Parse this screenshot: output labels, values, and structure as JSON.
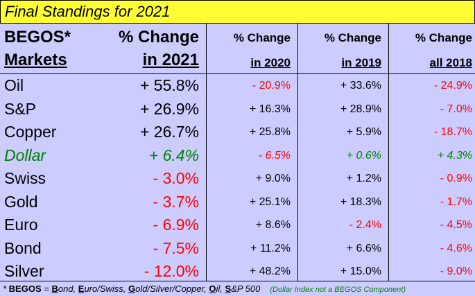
{
  "title": "Final Standings for 2021",
  "headers": {
    "col0_line1": "BEGOS*",
    "col0_line2": "Markets",
    "col1_line1": "% Change",
    "col1_line2": "in 2021",
    "col2_line1": "% Change",
    "col2_line2": "in 2020",
    "col3_line1": "% Change",
    "col3_line2": "in 2019",
    "col4_line1": "% Change",
    "col4_line2": "all 2018"
  },
  "rows": [
    {
      "market": "Oil",
      "y2021": "+ 55.8%",
      "y2020": "- 20.9%",
      "y2019": "+ 33.6%",
      "y2018": "- 24.9%"
    },
    {
      "market": "S&P",
      "y2021": "+ 26.9%",
      "y2020": "+ 16.3%",
      "y2019": "+ 28.9%",
      "y2018": "- 7.0%"
    },
    {
      "market": "Copper",
      "y2021": "+ 26.7%",
      "y2020": "+ 25.8%",
      "y2019": "+ 5.9%",
      "y2018": "- 18.7%"
    },
    {
      "market": "Dollar",
      "y2021": "+ 6.4%",
      "y2020": "- 6.5%",
      "y2019": "+ 0.6%",
      "y2018": "+ 4.3%"
    },
    {
      "market": "Swiss",
      "y2021": "- 3.0%",
      "y2020": "+ 9.0%",
      "y2019": "+ 1.2%",
      "y2018": "- 0.9%"
    },
    {
      "market": "Gold",
      "y2021": "- 3.7%",
      "y2020": "+ 25.1%",
      "y2019": "+ 18.3%",
      "y2018": "- 1.7%"
    },
    {
      "market": "Euro",
      "y2021": "- 6.9%",
      "y2020": "+ 8.6%",
      "y2019": "- 2.4%",
      "y2018": "- 4.5%"
    },
    {
      "market": "Bond",
      "y2021": "- 7.5%",
      "y2020": "+ 11.2%",
      "y2019": "+ 6.6%",
      "y2018": "- 4.6%"
    },
    {
      "market": "Silver",
      "y2021": "- 12.0%",
      "y2020": "+ 48.2%",
      "y2019": "+ 15.0%",
      "y2018": "- 9.0%"
    }
  ],
  "footnote": {
    "prefix": "* ",
    "begos": "BEGOS",
    "eq": " = ",
    "b": "B",
    "ond": "ond, ",
    "e": "E",
    "uroswiss": "uro/Swiss, ",
    "g": "G",
    "oldsilvercopper": "old/Silver/Copper, ",
    "o": "O",
    "il": "il, ",
    "s": "S",
    "p500": "&P 500",
    "note": "(Dollar Index not a BEGOS Component)"
  },
  "colors": {
    "background": "#ccccff",
    "title_bar": "#ffff33",
    "negative": "#ff0000",
    "dollar": "#008000",
    "positive": "#000000"
  }
}
